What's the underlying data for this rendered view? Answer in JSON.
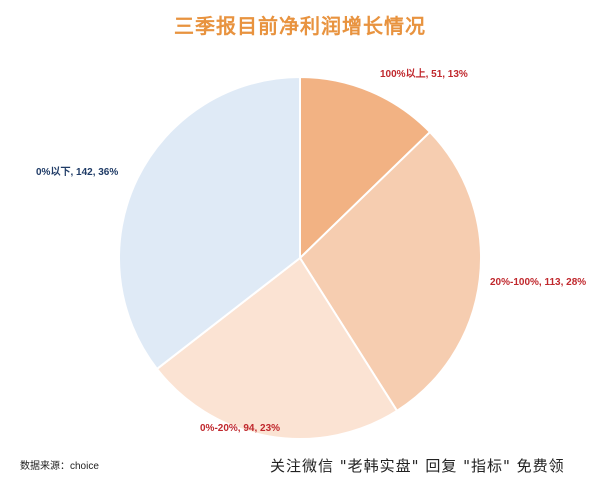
{
  "title": "三季报目前净利润增长情况",
  "source": "数据来源：choice",
  "watermark": "关注微信 \"老韩实盘\" 回复 \"指标\" 免费领",
  "colors": {
    "title": "#e8933f",
    "label_red": "#c0282d",
    "label_blue": "#1f3b66"
  },
  "chart_data": {
    "type": "pie",
    "title": "三季报目前净利润增长情况",
    "start_angle_deg": 0,
    "direction": "clockwise",
    "slices": [
      {
        "category": "100%以上",
        "value": 51,
        "percent": "13%",
        "label": "100%以上, 51, 13%",
        "color": "#f2b283",
        "label_color": "#c0282d"
      },
      {
        "category": "20%-100%",
        "value": 113,
        "percent": "28%",
        "label": "20%-100%, 113, 28%",
        "color": "#f6cdb0",
        "label_color": "#c0282d"
      },
      {
        "category": "0%-20%",
        "value": 94,
        "percent": "23%",
        "label": "0%-20%, 94, 23%",
        "color": "#fbe3d3",
        "label_color": "#c0282d"
      },
      {
        "category": "0%以下",
        "value": 142,
        "percent": "36%",
        "label": "0%以下, 142, 36%",
        "color": "#dfeaf6",
        "label_color": "#1f3b66"
      }
    ]
  }
}
